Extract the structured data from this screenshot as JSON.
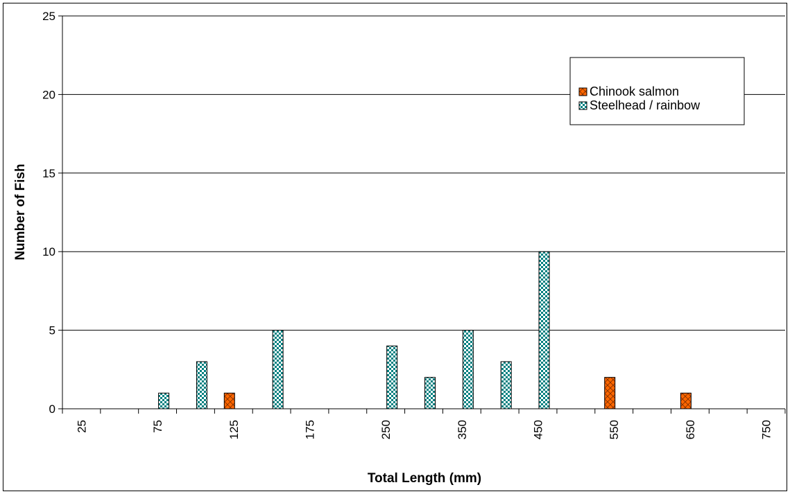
{
  "chart_data": {
    "type": "bar",
    "categories": [
      "25",
      "50",
      "75",
      "100",
      "125",
      "150",
      "175",
      "200",
      "250",
      "300",
      "350",
      "400",
      "450",
      "500",
      "550",
      "600",
      "650",
      "700",
      "750"
    ],
    "tick_labels_shown": [
      "25",
      "",
      "75",
      "",
      "125",
      "",
      "175",
      "",
      "250",
      "",
      "350",
      "",
      "450",
      "",
      "550",
      "",
      "650",
      "",
      "750"
    ],
    "series": [
      {
        "name": "Chinook salmon",
        "color": "#ff6600",
        "pattern": "crosshatch",
        "values": [
          0,
          0,
          0,
          0,
          1,
          0,
          0,
          0,
          0,
          0,
          0,
          0,
          0,
          0,
          2,
          0,
          1,
          0,
          0
        ]
      },
      {
        "name": "Steelhead / rainbow",
        "color": "#008080",
        "pattern": "checkerboard",
        "values": [
          0,
          0,
          1,
          3,
          0,
          5,
          0,
          0,
          4,
          2,
          5,
          3,
          10,
          0,
          0,
          0,
          0,
          0,
          0
        ]
      }
    ],
    "xlabel": "Total Length (mm)",
    "ylabel": "Number of Fish",
    "ylim": [
      0,
      25
    ],
    "yticks": [
      0,
      5,
      10,
      15,
      20,
      25
    ],
    "grid": true,
    "legend_position": "top-right"
  }
}
